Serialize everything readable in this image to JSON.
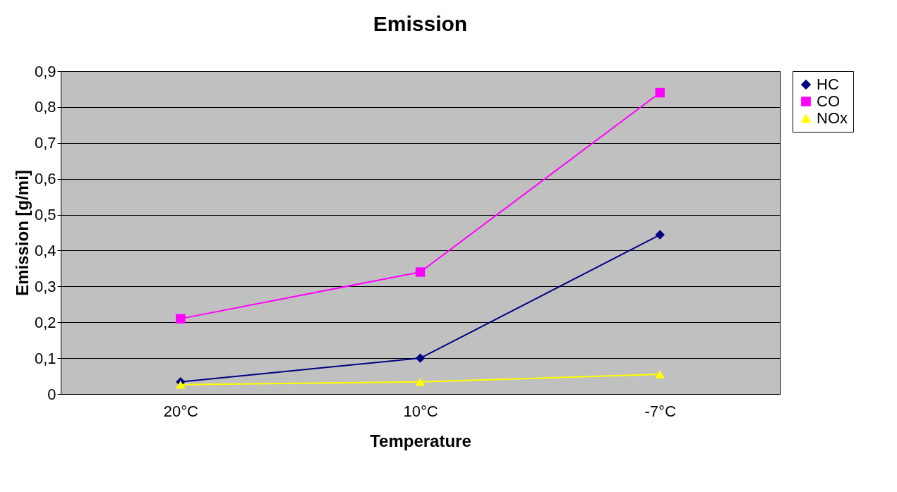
{
  "chart_data": {
    "type": "line",
    "title": "Emission",
    "xlabel": "Temperature",
    "ylabel": "Emission [g/mi]",
    "categories": [
      "20°C",
      "10°C",
      "-7°C"
    ],
    "series": [
      {
        "name": "HC",
        "color": "#000080",
        "marker": "diamond",
        "values": [
          0.034,
          0.1,
          0.444
        ]
      },
      {
        "name": "CO",
        "color": "#ff00ff",
        "marker": "square",
        "values": [
          0.21,
          0.34,
          0.84
        ]
      },
      {
        "name": "NOx",
        "color": "#ffff00",
        "marker": "triangle",
        "values": [
          0.026,
          0.034,
          0.055
        ]
      }
    ],
    "ylim": [
      0,
      0.9
    ],
    "yticks": [
      0,
      {
        "value": 0.1,
        "label": "0,1"
      },
      {
        "value": 0.2,
        "label": "0,2"
      },
      {
        "value": 0.3,
        "label": "0,3"
      },
      {
        "value": 0.4,
        "label": "0,4"
      },
      {
        "value": 0.5,
        "label": "0,5"
      },
      {
        "value": 0.6,
        "label": "0,6"
      },
      {
        "value": 0.7,
        "label": "0,7"
      },
      {
        "value": 0.8,
        "label": "0,8"
      },
      {
        "value": 0.9,
        "label": "0,9"
      }
    ],
    "grid": "y",
    "legend": "right",
    "line_style": "solid"
  }
}
